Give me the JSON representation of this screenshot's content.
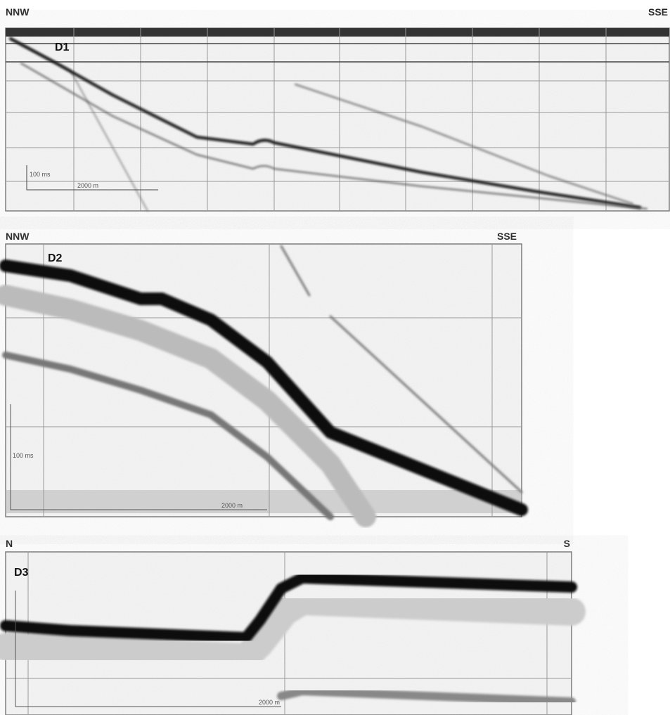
{
  "panels": [
    {
      "left_label": "NNW",
      "right_label": "SSE",
      "id_label": "D1",
      "time_scale": "100 ms",
      "distance_scale": "2000 m"
    },
    {
      "left_label": "NNW",
      "right_label": "SSE",
      "id_label": "D2",
      "time_scale": "100 ms",
      "distance_scale": "2000 m"
    },
    {
      "left_label": "N",
      "right_label": "S",
      "id_label": "D3",
      "distance_scale": "2000 m"
    }
  ]
}
